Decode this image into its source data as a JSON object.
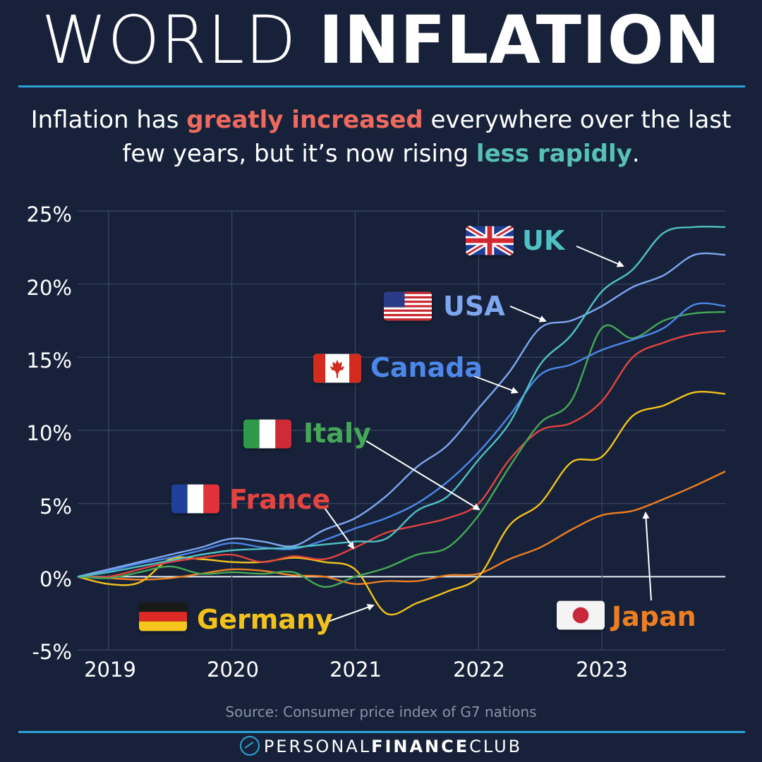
{
  "header": {
    "title_light": "WORLD",
    "title_bold": "INFLATION",
    "subtitle_prefix": "Inflation has ",
    "subtitle_red": "greatly increased",
    "subtitle_middle": " everywhere over the last few years, but it’s now rising ",
    "subtitle_teal": "less rapidly",
    "subtitle_suffix": "."
  },
  "chart_data": {
    "type": "line",
    "title": "WORLD INFLATION",
    "xlabel": "",
    "ylabel": "",
    "xlim": [
      2018.75,
      2024.0
    ],
    "ylim": [
      -5,
      25
    ],
    "x_tick_labels": [
      "2019",
      "2020",
      "2021",
      "2022",
      "2023"
    ],
    "x_tick_values": [
      2019,
      2020,
      2021,
      2022,
      2023
    ],
    "y_tick_labels": [
      "25%",
      "20%",
      "15%",
      "10%",
      "5%",
      "0%",
      "-5%"
    ],
    "y_tick_values": [
      25,
      20,
      15,
      10,
      5,
      0,
      -5
    ],
    "series": [
      {
        "name": "UK",
        "color": "#4fc0c3",
        "flag_icon": "uk-flag-icon",
        "x": [
          2018.75,
          2019.0,
          2019.25,
          2019.5,
          2019.75,
          2020.0,
          2020.25,
          2020.5,
          2020.75,
          2021.0,
          2021.25,
          2021.5,
          2021.75,
          2022.0,
          2022.25,
          2022.5,
          2022.75,
          2023.0,
          2023.25,
          2023.5,
          2023.75,
          2024.0
        ],
        "y": [
          0,
          0.3,
          0.7,
          1.1,
          1.5,
          1.8,
          1.9,
          2.0,
          2.2,
          2.4,
          2.6,
          4.5,
          5.5,
          8.0,
          10.5,
          14.5,
          16.5,
          19.5,
          21.0,
          23.5,
          23.9,
          23.9
        ]
      },
      {
        "name": "USA",
        "color": "#7fa7f0",
        "flag_icon": "usa-flag-icon",
        "x": [
          2018.75,
          2019.0,
          2019.25,
          2019.5,
          2019.75,
          2020.0,
          2020.25,
          2020.5,
          2020.75,
          2021.0,
          2021.25,
          2021.5,
          2021.75,
          2022.0,
          2022.25,
          2022.5,
          2022.75,
          2023.0,
          2023.25,
          2023.5,
          2023.75,
          2024.0
        ],
        "y": [
          0,
          0.5,
          1.0,
          1.5,
          2.0,
          2.6,
          2.4,
          2.1,
          3.2,
          4.0,
          5.5,
          7.5,
          9.0,
          11.5,
          14.0,
          17.0,
          17.5,
          18.5,
          19.8,
          20.6,
          22.0,
          22.0
        ]
      },
      {
        "name": "Canada",
        "color": "#4d87e8",
        "flag_icon": "canada-flag-icon",
        "x": [
          2018.75,
          2019.0,
          2019.25,
          2019.5,
          2019.75,
          2020.0,
          2020.25,
          2020.5,
          2020.75,
          2021.0,
          2021.25,
          2021.5,
          2021.75,
          2022.0,
          2022.25,
          2022.5,
          2022.75,
          2023.0,
          2023.25,
          2023.5,
          2023.75,
          2024.0
        ],
        "y": [
          0,
          0.4,
          0.9,
          1.3,
          1.8,
          2.3,
          2.0,
          1.9,
          2.5,
          3.3,
          4.0,
          5.0,
          6.5,
          8.5,
          11.0,
          13.8,
          14.5,
          15.5,
          16.2,
          17.0,
          18.6,
          18.5
        ]
      },
      {
        "name": "Italy",
        "color": "#45a857",
        "flag_icon": "italy-flag-icon",
        "x": [
          2018.75,
          2019.0,
          2019.25,
          2019.5,
          2019.75,
          2020.0,
          2020.25,
          2020.5,
          2020.75,
          2021.0,
          2021.25,
          2021.5,
          2021.75,
          2022.0,
          2022.25,
          2022.5,
          2022.75,
          2023.0,
          2023.25,
          2023.5,
          2023.75,
          2024.0
        ],
        "y": [
          0,
          -0.1,
          0.3,
          0.7,
          0.2,
          0.3,
          0.2,
          0.3,
          -0.7,
          0.0,
          0.6,
          1.5,
          2.0,
          4.2,
          7.5,
          10.5,
          12.0,
          17.0,
          16.3,
          17.5,
          18.0,
          18.1
        ]
      },
      {
        "name": "France",
        "color": "#e3443f",
        "flag_icon": "france-flag-icon",
        "x": [
          2018.75,
          2019.0,
          2019.25,
          2019.5,
          2019.75,
          2020.0,
          2020.25,
          2020.5,
          2020.75,
          2021.0,
          2021.25,
          2021.5,
          2021.75,
          2022.0,
          2022.25,
          2022.5,
          2022.75,
          2023.0,
          2023.25,
          2023.5,
          2023.75,
          2024.0
        ],
        "y": [
          0,
          0.0,
          0.5,
          1.0,
          1.3,
          1.5,
          1.0,
          1.4,
          1.2,
          2.0,
          3.0,
          3.5,
          4.0,
          5.0,
          8.0,
          10.0,
          10.5,
          12.0,
          15.0,
          16.0,
          16.6,
          16.8
        ]
      },
      {
        "name": "Germany",
        "color": "#f2c21c",
        "flag_icon": "germany-flag-icon",
        "x": [
          2018.75,
          2019.0,
          2019.25,
          2019.5,
          2019.75,
          2020.0,
          2020.25,
          2020.5,
          2020.75,
          2021.0,
          2021.25,
          2021.5,
          2021.75,
          2022.0,
          2022.25,
          2022.5,
          2022.75,
          2023.0,
          2023.25,
          2023.5,
          2023.75,
          2024.0
        ],
        "y": [
          0,
          -0.5,
          -0.4,
          1.2,
          1.2,
          1.0,
          1.0,
          1.3,
          1.0,
          0.5,
          -2.5,
          -1.8,
          -1.0,
          0.0,
          3.5,
          5.0,
          7.8,
          8.2,
          11.0,
          11.7,
          12.6,
          12.5
        ]
      },
      {
        "name": "Japan",
        "color": "#ee7e22",
        "flag_icon": "japan-flag-icon",
        "x": [
          2018.75,
          2019.0,
          2019.25,
          2019.5,
          2019.75,
          2020.0,
          2020.25,
          2020.5,
          2020.75,
          2021.0,
          2021.25,
          2021.5,
          2021.75,
          2022.0,
          2022.25,
          2022.5,
          2022.75,
          2023.0,
          2023.25,
          2023.5,
          2023.75,
          2024.0
        ],
        "y": [
          0,
          -0.1,
          -0.2,
          -0.1,
          0.2,
          0.5,
          0.4,
          0.1,
          0.0,
          -0.5,
          -0.3,
          -0.3,
          0.1,
          0.2,
          1.2,
          2.0,
          3.2,
          4.2,
          4.5,
          5.3,
          6.2,
          7.2
        ]
      }
    ],
    "annotations": [
      "UK",
      "USA",
      "Canada",
      "Italy",
      "France",
      "Germany",
      "Japan"
    ],
    "source": "Source: Consumer price index of G7 nations"
  },
  "footer": {
    "brand_light_1": "PERSONAL",
    "brand_bold": "FINANCE",
    "brand_light_2": "CLUB"
  }
}
